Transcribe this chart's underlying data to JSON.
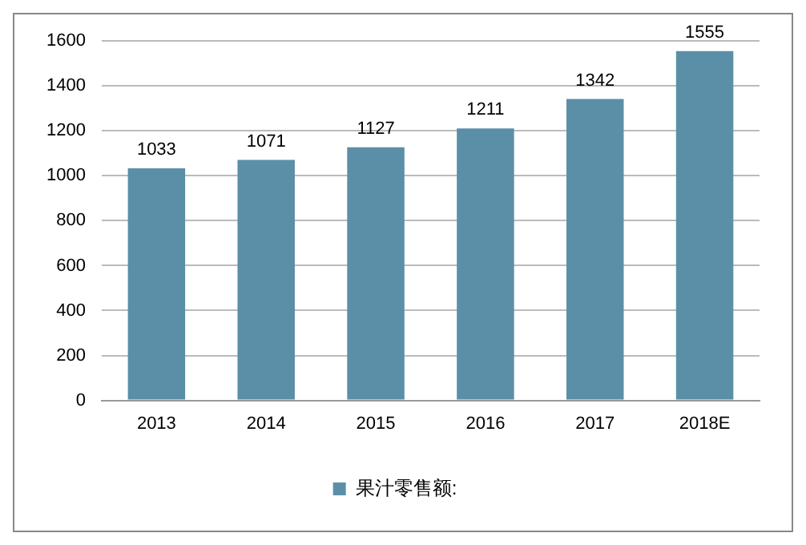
{
  "chart_data": {
    "type": "bar",
    "categories": [
      "2013",
      "2014",
      "2015",
      "2016",
      "2017",
      "2018E"
    ],
    "series": [
      {
        "name": "果汁零售额:",
        "color": "#5b8fa8",
        "values": [
          1033,
          1071,
          1127,
          1211,
          1342,
          1555
        ]
      }
    ],
    "ylim": [
      0,
      1600
    ],
    "yticks": [
      0,
      200,
      400,
      600,
      800,
      1000,
      1200,
      1400,
      1600
    ],
    "grid": "y",
    "legend": "bottom",
    "data_labels": true
  }
}
